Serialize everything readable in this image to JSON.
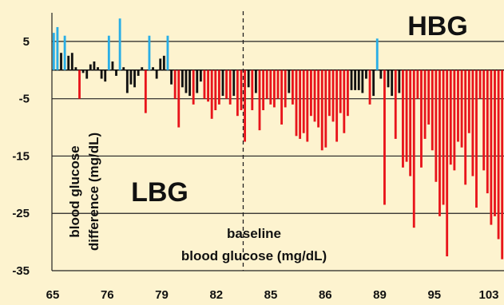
{
  "chart_data": {
    "type": "bar",
    "xlabel": "baseline blood glucose (mg/dL)",
    "xlabel_lines": [
      "baseline",
      "blood glucose (mg/dL)"
    ],
    "ylabel": "blood glucose difference (mg/dL)",
    "ylabel_lines": [
      "blood glucose",
      "difference (mg/dL)"
    ],
    "ylim": [
      -35,
      10
    ],
    "yticks": [
      5,
      -5,
      -15,
      -25,
      -35
    ],
    "xlim": [
      65,
      104
    ],
    "xticks": [
      65,
      76,
      79,
      82,
      85,
      86,
      89,
      95,
      103
    ],
    "x_tick_labels": [
      "65",
      "76",
      "79",
      "82",
      "85",
      "86",
      "89",
      "95",
      "103"
    ],
    "grid": "horizontal",
    "reference_line": {
      "x": 81.5,
      "style": "dashed",
      "label": "baseline"
    },
    "annotations": [
      "HBG",
      "LBG"
    ],
    "colors": {
      "positive_large": "#29aee6",
      "neutral": "#111111",
      "negative_large": "#e8141b"
    },
    "series": [
      {
        "values": [
          6.5,
          7.5,
          3,
          6,
          2.5,
          3,
          0.5,
          -5,
          -0.5,
          -1.5,
          1,
          1.5,
          0.5,
          -1.5,
          -2,
          6,
          1.5,
          -1,
          9,
          0.5,
          -4,
          -2.5,
          -3,
          -1,
          0.5,
          -7.5,
          6,
          0.5,
          -1.5,
          2,
          2.5,
          6,
          -2.5,
          -5,
          -10,
          -3,
          -4,
          -4.5,
          -6,
          -4,
          -2,
          -5,
          -5.5,
          -8.5,
          -7,
          -6,
          -4.5,
          -5,
          -6,
          -4.5,
          -8,
          -7,
          -12.5,
          -3,
          -7,
          -4,
          -10.5,
          -7,
          -5,
          -6,
          -6.5,
          -5,
          -9.5,
          -6.5,
          -4,
          -6,
          -11.5,
          -12,
          -11,
          -12.5,
          -8,
          -9,
          -10,
          -14,
          -13.5,
          -8,
          -9,
          -12.5,
          -7.5,
          -11,
          -8,
          -3.5,
          -3.5,
          -3.5,
          -4,
          -1.5,
          -6,
          -4.5,
          5.5,
          -1.5,
          -23.5,
          -3,
          -4.5,
          -12,
          -4,
          -17,
          -16,
          -18.5,
          -27.5,
          -5,
          -17,
          -12,
          -9.5,
          -14,
          -19.5,
          -25.5,
          -23.5,
          -32.5,
          -16.5,
          -17.5,
          -12.5,
          -13.5,
          -20,
          -11,
          -18.5,
          -24,
          -5,
          -17.5,
          -21.5,
          -27,
          -25.5,
          -29.5,
          -33
        ]
      }
    ]
  }
}
